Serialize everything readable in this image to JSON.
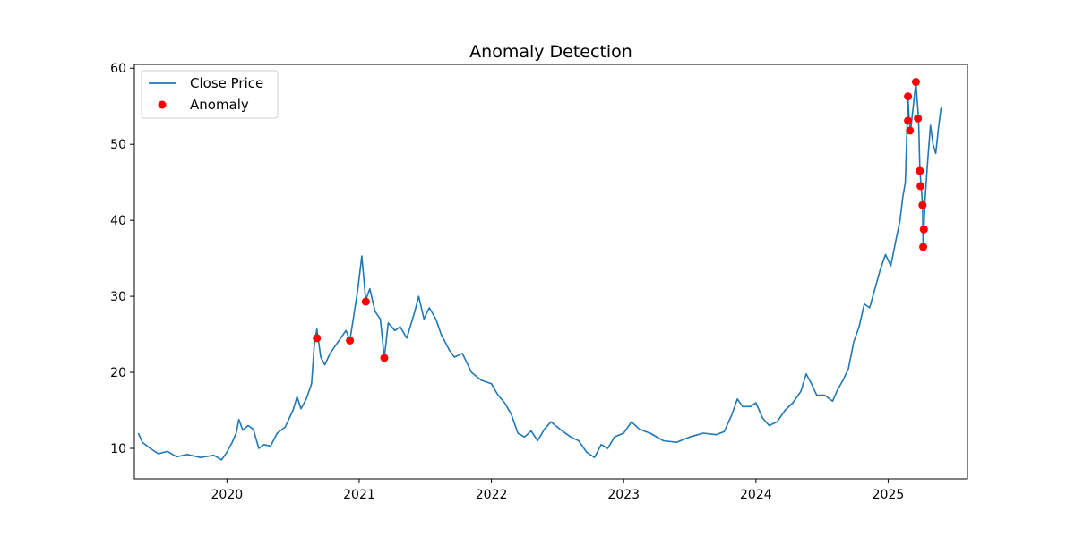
{
  "chart_data": {
    "type": "line",
    "title": "Anomaly Detection",
    "xlabel": "",
    "ylabel": "",
    "xlim": [
      2019.3,
      2025.6
    ],
    "ylim": [
      6,
      60.5
    ],
    "x_ticks": [
      2020,
      2021,
      2022,
      2023,
      2024,
      2025
    ],
    "y_ticks": [
      10,
      20,
      30,
      40,
      50,
      60
    ],
    "grid": false,
    "legend_position": "top-left",
    "colors": {
      "line": "#1f77b4",
      "anomaly": "#ff0000"
    },
    "series": [
      {
        "name": "Close Price",
        "type": "line",
        "points": [
          [
            2019.33,
            12.0
          ],
          [
            2019.36,
            10.8
          ],
          [
            2019.42,
            10.0
          ],
          [
            2019.48,
            9.3
          ],
          [
            2019.55,
            9.6
          ],
          [
            2019.62,
            8.9
          ],
          [
            2019.7,
            9.2
          ],
          [
            2019.8,
            8.8
          ],
          [
            2019.9,
            9.1
          ],
          [
            2019.96,
            8.5
          ],
          [
            2020.0,
            9.5
          ],
          [
            2020.04,
            10.8
          ],
          [
            2020.07,
            12.0
          ],
          [
            2020.09,
            13.8
          ],
          [
            2020.12,
            12.4
          ],
          [
            2020.16,
            13.0
          ],
          [
            2020.2,
            12.5
          ],
          [
            2020.24,
            10.0
          ],
          [
            2020.28,
            10.5
          ],
          [
            2020.33,
            10.3
          ],
          [
            2020.38,
            12.0
          ],
          [
            2020.44,
            12.8
          ],
          [
            2020.5,
            15.0
          ],
          [
            2020.53,
            16.8
          ],
          [
            2020.56,
            15.2
          ],
          [
            2020.6,
            16.5
          ],
          [
            2020.64,
            18.5
          ],
          [
            2020.66,
            23.5
          ],
          [
            2020.68,
            25.7
          ],
          [
            2020.71,
            22.0
          ],
          [
            2020.74,
            21.0
          ],
          [
            2020.78,
            22.5
          ],
          [
            2020.82,
            23.5
          ],
          [
            2020.86,
            24.5
          ],
          [
            2020.9,
            25.5
          ],
          [
            2020.93,
            24.2
          ],
          [
            2020.96,
            27.5
          ],
          [
            2020.99,
            31.0
          ],
          [
            2021.02,
            35.3
          ],
          [
            2021.05,
            29.5
          ],
          [
            2021.08,
            31.0
          ],
          [
            2021.12,
            28.0
          ],
          [
            2021.16,
            27.0
          ],
          [
            2021.19,
            21.9
          ],
          [
            2021.22,
            26.5
          ],
          [
            2021.27,
            25.5
          ],
          [
            2021.31,
            26.0
          ],
          [
            2021.36,
            24.5
          ],
          [
            2021.42,
            28.0
          ],
          [
            2021.45,
            30.0
          ],
          [
            2021.49,
            27.0
          ],
          [
            2021.53,
            28.5
          ],
          [
            2021.58,
            27.0
          ],
          [
            2021.62,
            25.0
          ],
          [
            2021.68,
            23.0
          ],
          [
            2021.72,
            22.0
          ],
          [
            2021.78,
            22.5
          ],
          [
            2021.85,
            20.0
          ],
          [
            2021.92,
            19.0
          ],
          [
            2022.0,
            18.5
          ],
          [
            2022.05,
            17.0
          ],
          [
            2022.1,
            16.0
          ],
          [
            2022.15,
            14.5
          ],
          [
            2022.2,
            12.0
          ],
          [
            2022.25,
            11.5
          ],
          [
            2022.3,
            12.3
          ],
          [
            2022.35,
            11.0
          ],
          [
            2022.4,
            12.5
          ],
          [
            2022.45,
            13.5
          ],
          [
            2022.52,
            12.5
          ],
          [
            2022.6,
            11.5
          ],
          [
            2022.66,
            11.0
          ],
          [
            2022.72,
            9.5
          ],
          [
            2022.78,
            8.8
          ],
          [
            2022.83,
            10.5
          ],
          [
            2022.88,
            10.0
          ],
          [
            2022.93,
            11.5
          ],
          [
            2023.0,
            12.0
          ],
          [
            2023.06,
            13.5
          ],
          [
            2023.12,
            12.5
          ],
          [
            2023.2,
            12.0
          ],
          [
            2023.3,
            11.0
          ],
          [
            2023.4,
            10.8
          ],
          [
            2023.5,
            11.5
          ],
          [
            2023.6,
            12.0
          ],
          [
            2023.7,
            11.8
          ],
          [
            2023.76,
            12.2
          ],
          [
            2023.82,
            14.5
          ],
          [
            2023.86,
            16.5
          ],
          [
            2023.9,
            15.5
          ],
          [
            2023.96,
            15.5
          ],
          [
            2024.0,
            16.0
          ],
          [
            2024.05,
            14.0
          ],
          [
            2024.1,
            13.0
          ],
          [
            2024.16,
            13.5
          ],
          [
            2024.22,
            15.0
          ],
          [
            2024.28,
            16.0
          ],
          [
            2024.34,
            17.5
          ],
          [
            2024.38,
            19.8
          ],
          [
            2024.42,
            18.5
          ],
          [
            2024.46,
            17.0
          ],
          [
            2024.52,
            17.0
          ],
          [
            2024.58,
            16.2
          ],
          [
            2024.62,
            17.8
          ],
          [
            2024.66,
            19.0
          ],
          [
            2024.7,
            20.5
          ],
          [
            2024.74,
            24.0
          ],
          [
            2024.78,
            26.0
          ],
          [
            2024.82,
            29.0
          ],
          [
            2024.86,
            28.5
          ],
          [
            2024.9,
            31.0
          ],
          [
            2024.94,
            33.5
          ],
          [
            2024.98,
            35.5
          ],
          [
            2025.02,
            34.0
          ],
          [
            2025.06,
            37.5
          ],
          [
            2025.09,
            40.0
          ],
          [
            2025.11,
            43.0
          ],
          [
            2025.13,
            45.0
          ],
          [
            2025.15,
            56.3
          ],
          [
            2025.16,
            53.0
          ],
          [
            2025.17,
            51.8
          ],
          [
            2025.19,
            55.0
          ],
          [
            2025.21,
            58.2
          ],
          [
            2025.23,
            53.4
          ],
          [
            2025.24,
            46.5
          ],
          [
            2025.25,
            44.5
          ],
          [
            2025.26,
            42.0
          ],
          [
            2025.265,
            36.5
          ],
          [
            2025.27,
            38.8
          ],
          [
            2025.28,
            43.0
          ],
          [
            2025.3,
            48.0
          ],
          [
            2025.32,
            52.5
          ],
          [
            2025.34,
            50.0
          ],
          [
            2025.36,
            48.8
          ],
          [
            2025.38,
            52.0
          ],
          [
            2025.4,
            54.8
          ]
        ]
      },
      {
        "name": "Anomaly",
        "type": "scatter",
        "points": [
          [
            2020.68,
            24.5
          ],
          [
            2020.93,
            24.2
          ],
          [
            2021.05,
            29.3
          ],
          [
            2021.19,
            21.9
          ],
          [
            2025.15,
            56.3
          ],
          [
            2025.15,
            53.1
          ],
          [
            2025.165,
            51.8
          ],
          [
            2025.21,
            58.2
          ],
          [
            2025.225,
            53.4
          ],
          [
            2025.24,
            46.5
          ],
          [
            2025.245,
            44.5
          ],
          [
            2025.26,
            42.0
          ],
          [
            2025.265,
            36.5
          ],
          [
            2025.27,
            38.8
          ]
        ]
      }
    ]
  }
}
